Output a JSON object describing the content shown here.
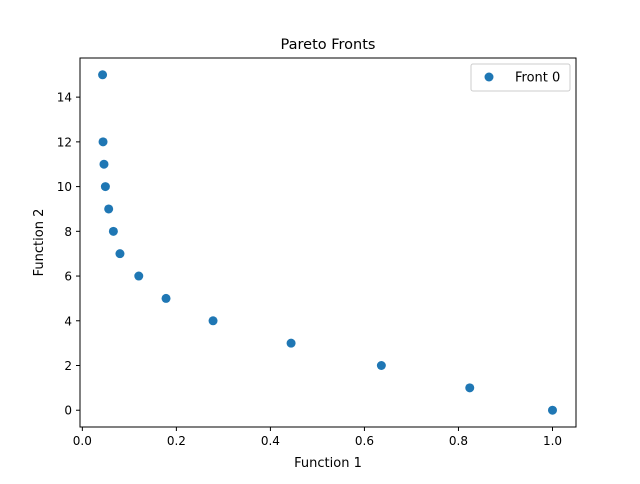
{
  "chart_data": {
    "type": "scatter",
    "title": "Pareto Fronts",
    "xlabel": "Function 1",
    "ylabel": "Function 2",
    "xlim": [
      -0.005,
      1.05
    ],
    "ylim": [
      -0.75,
      15.75
    ],
    "xticks": [
      0.0,
      0.2,
      0.4,
      0.6,
      0.8,
      1.0
    ],
    "xtick_labels": [
      "0.0",
      "0.2",
      "0.4",
      "0.6",
      "0.8",
      "1.0"
    ],
    "yticks": [
      0,
      2,
      4,
      6,
      8,
      10,
      12,
      14
    ],
    "ytick_labels": [
      "0",
      "2",
      "4",
      "6",
      "8",
      "10",
      "12",
      "14"
    ],
    "grid": false,
    "legend_position": "top-right",
    "series": [
      {
        "name": "Front 0",
        "color": "#1f77b4",
        "points": [
          {
            "x": 0.043,
            "y": 15
          },
          {
            "x": 0.044,
            "y": 12
          },
          {
            "x": 0.046,
            "y": 11
          },
          {
            "x": 0.049,
            "y": 10
          },
          {
            "x": 0.056,
            "y": 9
          },
          {
            "x": 0.066,
            "y": 8
          },
          {
            "x": 0.08,
            "y": 7
          },
          {
            "x": 0.12,
            "y": 6
          },
          {
            "x": 0.178,
            "y": 5
          },
          {
            "x": 0.278,
            "y": 4
          },
          {
            "x": 0.444,
            "y": 3
          },
          {
            "x": 0.636,
            "y": 2
          },
          {
            "x": 0.824,
            "y": 1
          },
          {
            "x": 1.0,
            "y": 0
          }
        ]
      }
    ]
  }
}
